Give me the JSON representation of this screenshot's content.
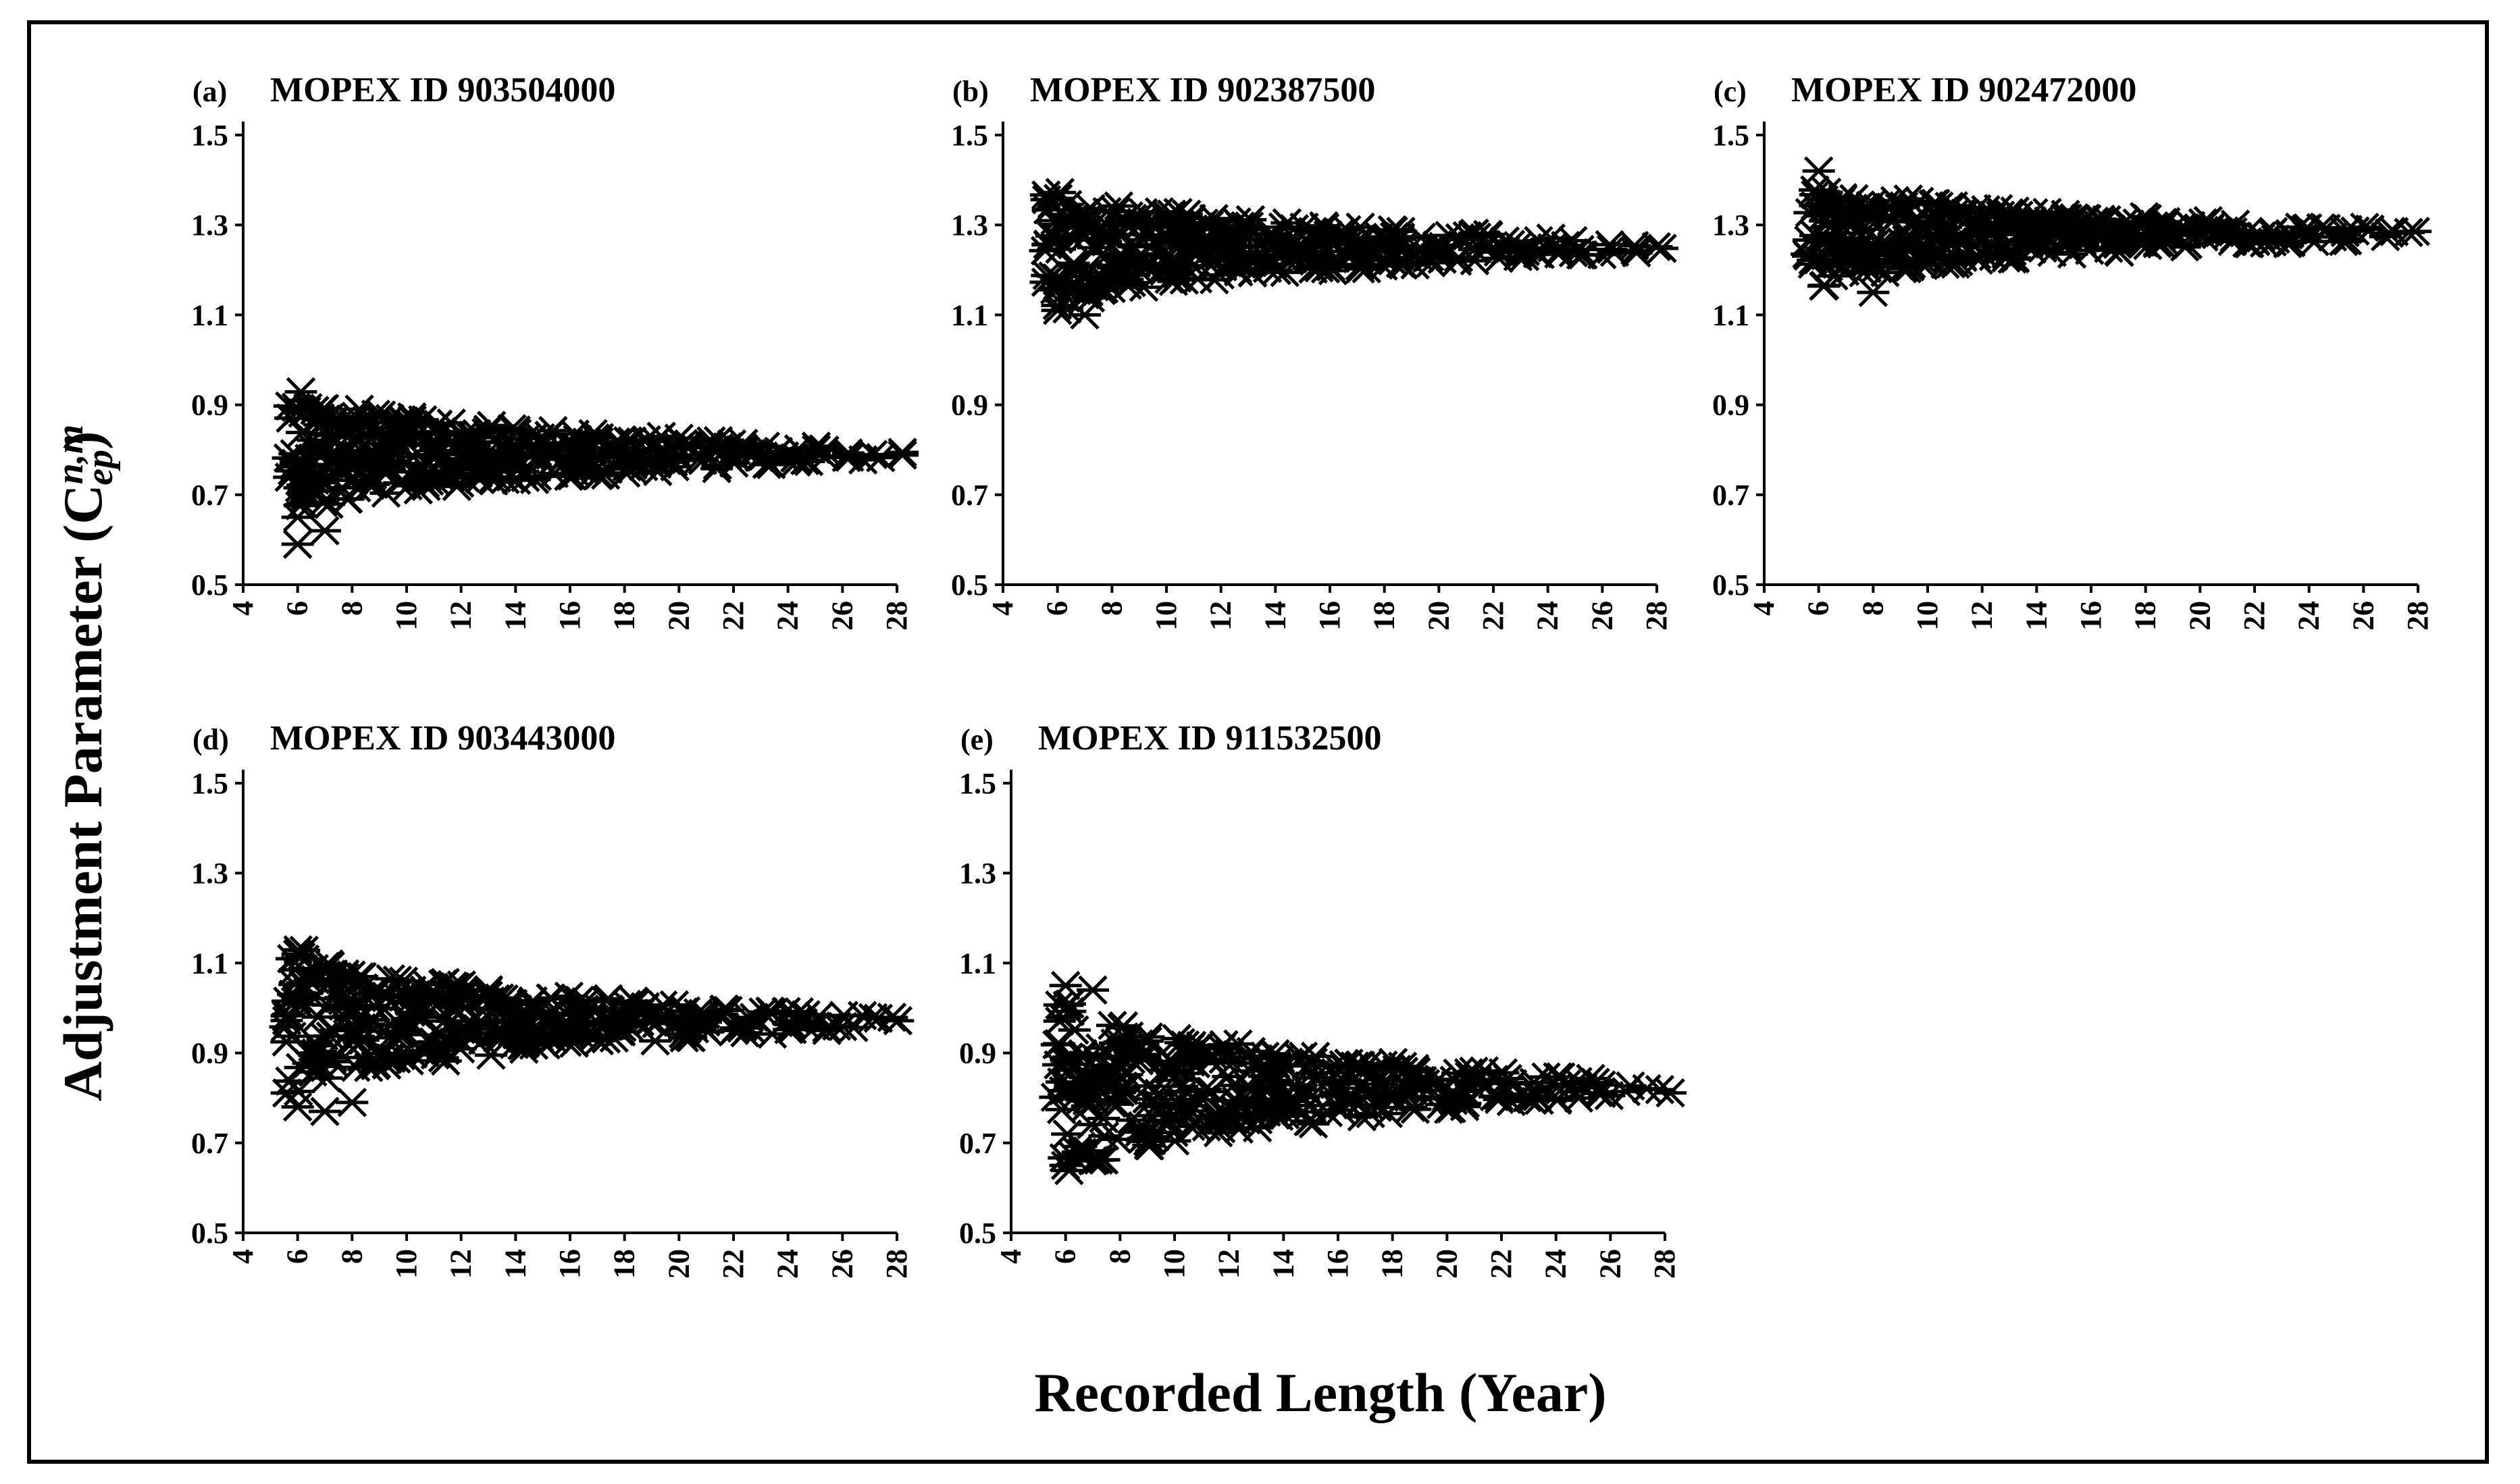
{
  "figure": {
    "ylabel": "Adjustment Parameter (C",
    "ylabel_sup": "n,m",
    "ylabel_sub": "ep",
    "ylabel_close": ")",
    "xlabel": "Recorded Length (Year)"
  },
  "chart_data": [
    {
      "type": "scatter",
      "panel": "(a)",
      "title": "MOPEX ID 903504000",
      "marker": "asterisk",
      "xlim": [
        4,
        28
      ],
      "ylim": [
        0.5,
        1.5
      ],
      "xticks": [
        "4",
        "6",
        "8",
        "10",
        "12",
        "14",
        "16",
        "18",
        "20",
        "22",
        "24",
        "26",
        "28"
      ],
      "yticks": [
        "0.5",
        "0.7",
        "0.9",
        "1.1",
        "1.3",
        "1.5"
      ],
      "center": 0.79,
      "spread_start": 0.14,
      "spread_end": 0.01,
      "extra_low": [
        [
          6,
          0.59
        ],
        [
          7,
          0.62
        ],
        [
          6,
          0.65
        ]
      ]
    },
    {
      "type": "scatter",
      "panel": "(b)",
      "title": "MOPEX ID 902387500",
      "marker": "asterisk",
      "xlim": [
        4,
        28
      ],
      "ylim": [
        0.5,
        1.5
      ],
      "xticks": [
        "4",
        "6",
        "8",
        "10",
        "12",
        "14",
        "16",
        "18",
        "20",
        "22",
        "24",
        "26",
        "28"
      ],
      "yticks": [
        "0.5",
        "0.7",
        "0.9",
        "1.1",
        "1.3",
        "1.5"
      ],
      "center": 1.25,
      "spread_start": 0.14,
      "spread_end": 0.01,
      "extra_low": [
        [
          6,
          1.11
        ],
        [
          7,
          1.1
        ]
      ]
    },
    {
      "type": "scatter",
      "panel": "(c)",
      "title": "MOPEX ID 902472000",
      "marker": "asterisk",
      "xlim": [
        4,
        28
      ],
      "ylim": [
        0.5,
        1.5
      ],
      "xticks": [
        "4",
        "6",
        "8",
        "10",
        "12",
        "14",
        "16",
        "18",
        "20",
        "22",
        "24",
        "26",
        "28"
      ],
      "yticks": [
        "0.5",
        "0.7",
        "0.9",
        "1.1",
        "1.3",
        "1.5"
      ],
      "center": 1.28,
      "spread_start": 0.12,
      "spread_end": 0.01,
      "extra_low": [
        [
          6,
          1.42
        ],
        [
          8,
          1.15
        ]
      ]
    },
    {
      "type": "scatter",
      "panel": "(d)",
      "title": "MOPEX ID 903443000",
      "marker": "asterisk",
      "xlim": [
        4,
        28
      ],
      "ylim": [
        0.5,
        1.5
      ],
      "xticks": [
        "4",
        "6",
        "8",
        "10",
        "12",
        "14",
        "16",
        "18",
        "20",
        "22",
        "24",
        "26",
        "28"
      ],
      "yticks": [
        "0.5",
        "0.7",
        "0.9",
        "1.1",
        "1.3",
        "1.5"
      ],
      "center": 0.97,
      "spread_start": 0.16,
      "spread_end": 0.01,
      "extra_low": [
        [
          6,
          0.78
        ],
        [
          7,
          0.77
        ],
        [
          8,
          0.79
        ],
        [
          6,
          1.12
        ]
      ]
    },
    {
      "type": "scatter",
      "panel": "(e)",
      "title": "MOPEX ID 911532500",
      "marker": "asterisk",
      "xlim": [
        4,
        28
      ],
      "ylim": [
        0.5,
        1.5
      ],
      "xticks": [
        "4",
        "6",
        "8",
        "10",
        "12",
        "14",
        "16",
        "18",
        "20",
        "22",
        "24",
        "26",
        "28"
      ],
      "yticks": [
        "0.5",
        "0.7",
        "0.9",
        "1.1",
        "1.3",
        "1.5"
      ],
      "center": 0.82,
      "spread_start": 0.2,
      "spread_end": 0.01,
      "extra_low": [
        [
          6,
          0.65
        ],
        [
          7,
          0.66
        ],
        [
          6,
          1.05
        ],
        [
          7,
          1.04
        ]
      ]
    }
  ]
}
